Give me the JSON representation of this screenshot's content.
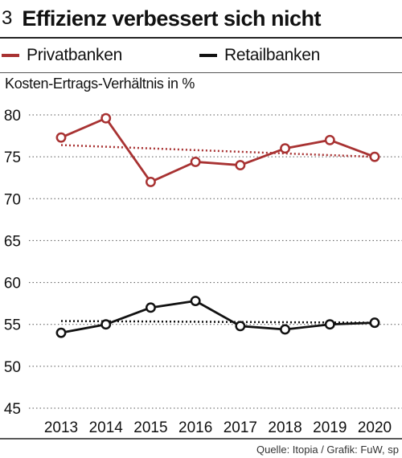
{
  "header": {
    "number": "3",
    "title": "Effizienz verbessert sich nicht"
  },
  "legend": [
    {
      "label": "Privatbanken",
      "color": "#a83232"
    },
    {
      "label": "Retailbanken",
      "color": "#111111"
    }
  ],
  "source": "Quelle: Itopia / Grafik: FuW, sp",
  "chart_data": {
    "type": "line",
    "title": "Effizienz verbessert sich nicht",
    "ylabel": "Kosten-Ertrags-Verhältnis in %",
    "xlabel": "",
    "categories": [
      "2013",
      "2014",
      "2015",
      "2016",
      "2017",
      "2018",
      "2019",
      "2020"
    ],
    "ylim": [
      45,
      80
    ],
    "yticks": [
      45,
      50,
      55,
      60,
      65,
      70,
      75,
      80
    ],
    "grid": "horizontal dotted",
    "legend_position": "top",
    "series": [
      {
        "name": "Privatbanken",
        "color": "#a83232",
        "values": [
          77.3,
          79.6,
          72.0,
          74.4,
          74.0,
          76.0,
          77.0,
          75.0
        ],
        "trend": [
          76.4,
          75.0
        ]
      },
      {
        "name": "Retailbanken",
        "color": "#111111",
        "values": [
          54.0,
          55.0,
          57.0,
          57.8,
          54.8,
          54.4,
          55.0,
          55.2
        ],
        "trend": [
          55.4,
          55.2
        ]
      }
    ]
  }
}
